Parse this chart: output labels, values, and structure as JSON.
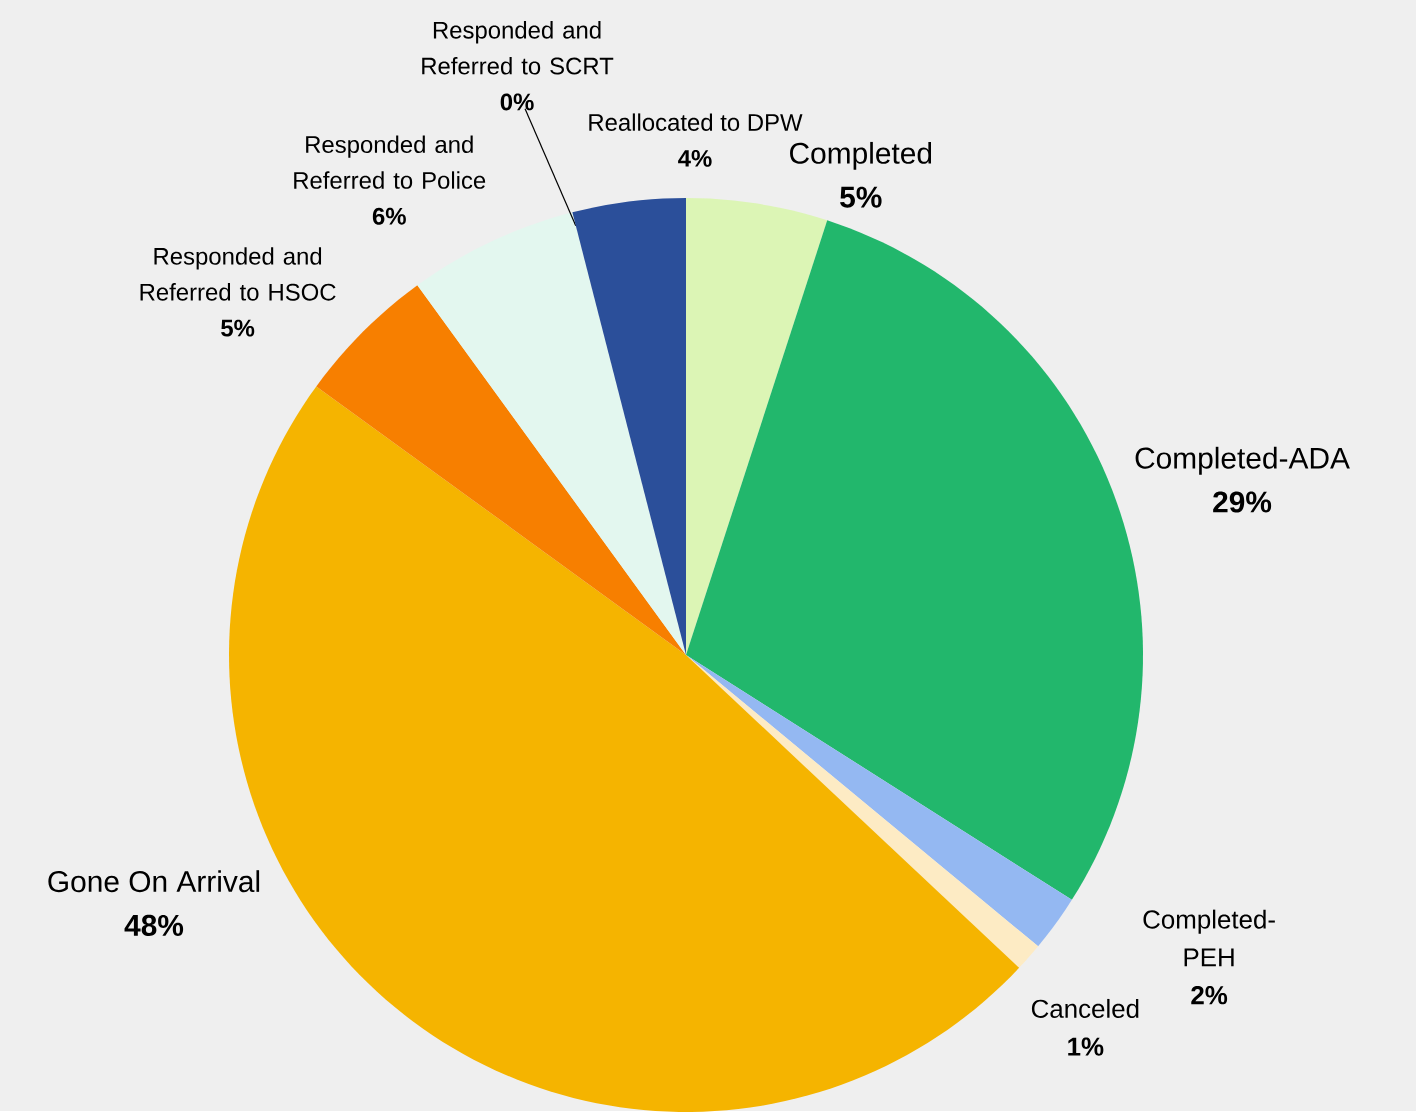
{
  "chart_data": {
    "type": "pie",
    "categories": [
      "Completed",
      "Completed-ADA",
      "Completed-PEH",
      "Canceled",
      "Gone On Arrival",
      "Responded and Referred to HSOC",
      "Responded and Referred to Police",
      "Responded and Referred to SCRT",
      "Reallocated to DPW"
    ],
    "values": [
      5,
      29,
      2,
      1,
      48,
      5,
      6,
      0,
      4
    ],
    "value_labels": [
      "5%",
      "29%",
      "2%",
      "1%",
      "48%",
      "5%",
      "6%",
      "0%",
      "4%"
    ],
    "colors": [
      "#dcf5b5",
      "#22b76c",
      "#94b8f2",
      "#fdebc4",
      "#f5b400",
      "#f77f00",
      "#e3f7ef",
      "#8b6b3a",
      "#2b4f9a"
    ]
  }
}
